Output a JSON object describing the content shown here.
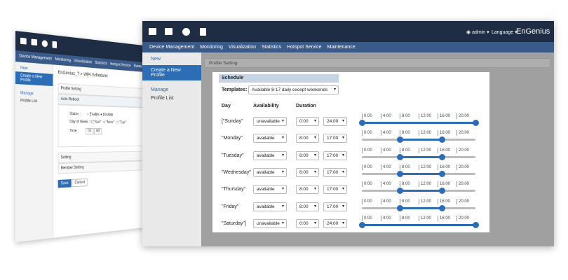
{
  "back": {
    "nav": [
      "Device Management",
      "Monitoring",
      "Visualization",
      "Statistics",
      "Hotspot Service",
      "Mainte"
    ],
    "side": {
      "new": "New",
      "create": "Create a New Profile",
      "manage": "Manage",
      "list": "Profile List"
    },
    "breadcrumb": "EnGenius_T > WiFi Scheduler",
    "profile_setting": "Profile Setting",
    "auto_reboot": "Auto Reboot",
    "status": "Status :",
    "enable": "Enable",
    "disable": "Disable",
    "dow": "Day of Week :",
    "days": [
      "[\"Sun\"",
      "\"Mon\"",
      "\"Tue\""
    ],
    "time": "Time :",
    "hour": "00",
    "minute": "00",
    "setting": "Setting",
    "member": "Member Setting",
    "save": "Save",
    "cancel": "Cancel"
  },
  "front": {
    "user": "admin",
    "language": "Language",
    "brand": "EnGenius",
    "nav": [
      "Device Management",
      "Monitoring",
      "Visualization",
      "Statistics",
      "Hotspot Service",
      "Maintenance"
    ],
    "side": {
      "new": "New",
      "create": "Create a New Profile",
      "manage": "Manage",
      "list": "Profile List"
    },
    "profile_setting": "Profile Setting",
    "modal": {
      "title": "Schedule",
      "templates_label": "Templates:",
      "template": "Available 8-17 daily except weekends",
      "headers": [
        "Day",
        "Availability",
        "Duration"
      ],
      "slider": {
        "range": [
          0,
          24
        ],
        "ticks": [
          "0:00",
          "4:00",
          "8:00",
          "12:00",
          "16:00",
          "20:00"
        ]
      },
      "rows": [
        {
          "day": "[\"Sunday\"",
          "availability": "unavailable",
          "start": "0:00",
          "end": "24:00"
        },
        {
          "day": "\"Monday\"",
          "availability": "available",
          "start": "8:00",
          "end": "17:00"
        },
        {
          "day": "\"Tuesday\"",
          "availability": "available",
          "start": "8:00",
          "end": "17:00"
        },
        {
          "day": "\"Wednesday\"",
          "availability": "available",
          "start": "8:00",
          "end": "17:00"
        },
        {
          "day": "\"Thursday\"",
          "availability": "available",
          "start": "8:00",
          "end": "17:00"
        },
        {
          "day": "\"Friday\"",
          "availability": "available",
          "start": "8:00",
          "end": "17:00"
        },
        {
          "day": "\"Saturday\"]",
          "availability": "unavailable",
          "start": "0:00",
          "end": "24:00"
        }
      ]
    }
  }
}
